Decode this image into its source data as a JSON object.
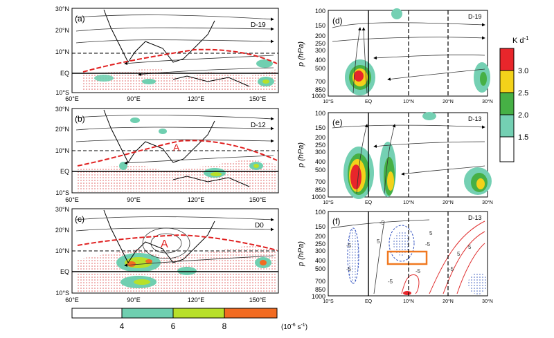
{
  "map_panels": [
    {
      "tag": "(a)",
      "day": "D-19"
    },
    {
      "tag": "(b)",
      "day": "D-12"
    },
    {
      "tag": "(c)",
      "day": "D0"
    }
  ],
  "map_axes": {
    "lat_ticks": [
      "30°N",
      "20°N",
      "10°N",
      "EQ",
      "10°S"
    ],
    "lon_ticks": [
      "60°E",
      "90°E",
      "120°E",
      "150°E"
    ]
  },
  "map_markers": {
    "b": "A",
    "c": "A"
  },
  "section_panels": [
    {
      "tag": "(d)",
      "day": "D-19"
    },
    {
      "tag": "(e)",
      "day": "D-13"
    },
    {
      "tag": "(f)",
      "day": "D-13"
    }
  ],
  "section_axes": {
    "ylabel": "p (hPa)",
    "p_ticks": [
      "100",
      "150",
      "200",
      "250",
      "300",
      "400",
      "500",
      "700",
      "850",
      "1000"
    ],
    "lat_ticks": [
      "10°S",
      "EQ",
      "10°N",
      "20°N",
      "30°N"
    ]
  },
  "contour_labels_f": [
    "-5",
    "5",
    "-5",
    "5",
    "-5",
    "-5",
    "-5",
    "-5",
    "5",
    "-5",
    "5"
  ],
  "right_colorbar": {
    "unit": "K d",
    "unit_exp": "-1",
    "ticks": [
      "3.0",
      "2.5",
      "2.0",
      "1.5"
    ],
    "colors": [
      "#e8262b",
      "#f3d21a",
      "#46b045",
      "#74d0b3",
      "#ffffff"
    ]
  },
  "bottom_colorbar": {
    "ticks": [
      "4",
      "6",
      "8"
    ],
    "unit": "(10",
    "unit_exp": "-6",
    "unit_tail": " s",
    "unit_exp2": "-1",
    "unit_close": ")",
    "colors": [
      "#ffffff",
      "#6fcfb0",
      "#b8e02a",
      "#f26b21"
    ]
  }
}
